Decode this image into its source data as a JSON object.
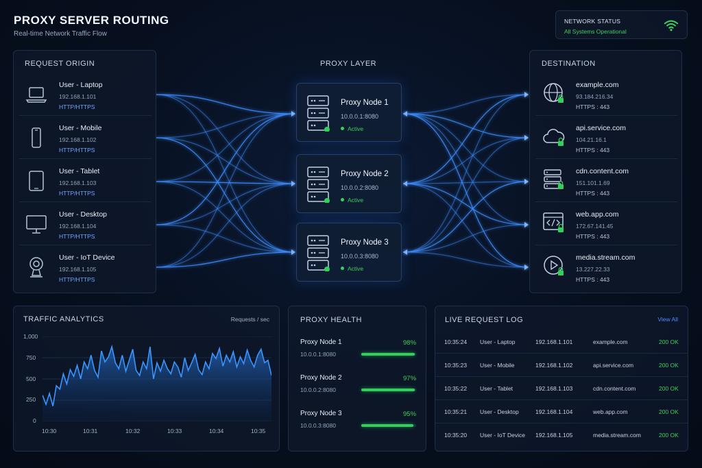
{
  "header": {
    "title": "PROXY SERVER ROUTING",
    "subtitle": "Real-time Network Traffic Flow"
  },
  "network_status": {
    "title": "NETWORK STATUS",
    "text": "All Systems Operational",
    "icon": "wifi-icon",
    "color": "#3ccf5b"
  },
  "origin": {
    "title": "REQUEST ORIGIN",
    "items": [
      {
        "name": "User - Laptop",
        "ip": "192.168.1.101",
        "protocol": "HTTP/HTTPS",
        "icon": "laptop-icon"
      },
      {
        "name": "User - Mobile",
        "ip": "192.168.1.102",
        "protocol": "HTTP/HTTPS",
        "icon": "mobile-icon"
      },
      {
        "name": "User - Tablet",
        "ip": "192.168.1.103",
        "protocol": "HTTP/HTTPS",
        "icon": "tablet-icon"
      },
      {
        "name": "User - Desktop",
        "ip": "192.168.1.104",
        "protocol": "HTTP/HTTPS",
        "icon": "desktop-icon"
      },
      {
        "name": "User - IoT Device",
        "ip": "192.168.1.105",
        "protocol": "HTTP/HTTPS",
        "icon": "camera-icon"
      }
    ]
  },
  "proxy_layer": {
    "title": "PROXY LAYER",
    "nodes": [
      {
        "name": "Proxy Node 1",
        "address": "10.0.0.1:8080",
        "status": "Active"
      },
      {
        "name": "Proxy Node 2",
        "address": "10.0.0.2:8080",
        "status": "Active"
      },
      {
        "name": "Proxy Node 3",
        "address": "10.0.0.3:8080",
        "status": "Active"
      }
    ]
  },
  "destination": {
    "title": "DESTINATION",
    "items": [
      {
        "name": "example.com",
        "ip": "93.184.216.34",
        "port": "HTTPS : 443",
        "icon": "globe-icon"
      },
      {
        "name": "api.service.com",
        "ip": "104.21.16.1",
        "port": "HTTPS : 443",
        "icon": "cloud-icon"
      },
      {
        "name": "cdn.content.com",
        "ip": "151.101.1.69",
        "port": "HTTPS : 443",
        "icon": "server-icon"
      },
      {
        "name": "web.app.com",
        "ip": "172.67.141.45",
        "port": "HTTPS : 443",
        "icon": "code-window-icon"
      },
      {
        "name": "media.stream.com",
        "ip": "13.227.22.33",
        "port": "HTTPS : 443",
        "icon": "play-icon"
      }
    ]
  },
  "traffic": {
    "title": "TRAFFIC ANALYTICS",
    "unit": "Requests / sec"
  },
  "chart_data": {
    "type": "area",
    "ylim": [
      0,
      1000
    ],
    "y_ticks": [
      "1,000",
      "750",
      "500",
      "250",
      "0"
    ],
    "x_ticks": [
      "10:30",
      "10:31",
      "10:32",
      "10:33",
      "10:34",
      "10:35"
    ],
    "values": [
      310,
      200,
      330,
      180,
      420,
      380,
      560,
      440,
      610,
      530,
      660,
      500,
      700,
      620,
      780,
      600,
      520,
      830,
      700,
      760,
      880,
      690,
      620,
      780,
      590,
      720,
      850,
      600,
      540,
      700,
      620,
      880,
      500,
      690,
      590,
      720,
      620,
      560,
      700,
      640,
      520,
      750,
      600,
      690,
      790,
      610,
      550,
      700,
      620,
      800,
      740,
      860,
      650,
      780,
      700,
      820,
      640,
      760,
      680,
      840,
      720,
      640,
      780,
      850,
      690,
      720,
      540
    ],
    "color": "#2f8bff"
  },
  "health": {
    "title": "PROXY HEALTH",
    "items": [
      {
        "name": "Proxy Node 1",
        "address": "10.0.0.1:8080",
        "pct_label": "98%",
        "pct": 98
      },
      {
        "name": "Proxy Node 2",
        "address": "10.0.0.2:8080",
        "pct_label": "97%",
        "pct": 97
      },
      {
        "name": "Proxy Node 3",
        "address": "10.0.0.3:8080",
        "pct_label": "95%",
        "pct": 95
      }
    ]
  },
  "log": {
    "title": "LIVE REQUEST LOG",
    "view_all": "View All",
    "rows": [
      {
        "time": "10:35:24",
        "user": "User - Laptop",
        "ip": "192.168.1.101",
        "dest": "example.com",
        "status": "200 OK"
      },
      {
        "time": "10:35:23",
        "user": "User - Mobile",
        "ip": "192.168.1.102",
        "dest": "api.service.com",
        "status": "200 OK"
      },
      {
        "time": "10:35:22",
        "user": "User - Tablet",
        "ip": "192.168.1.103",
        "dest": "cdn.content.com",
        "status": "200 OK"
      },
      {
        "time": "10:35:21",
        "user": "User - Desktop",
        "ip": "192.168.1.104",
        "dest": "web.app.com",
        "status": "200 OK"
      },
      {
        "time": "10:35:20",
        "user": "User - IoT Device",
        "ip": "192.168.1.105",
        "dest": "media.stream.com",
        "status": "200 OK"
      }
    ]
  }
}
